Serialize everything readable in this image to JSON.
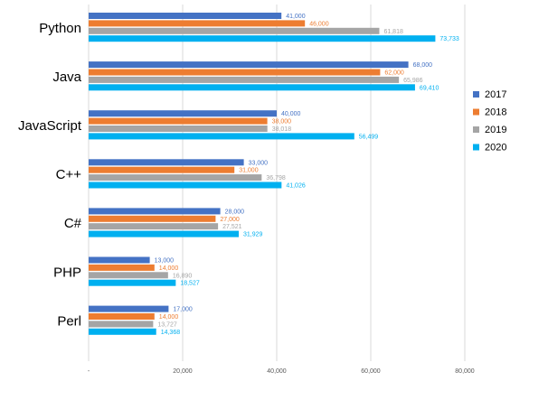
{
  "chart_data": {
    "type": "bar",
    "orientation": "horizontal",
    "categories": [
      "Python",
      "Java",
      "JavaScript",
      "C++",
      "C#",
      "PHP",
      "Perl"
    ],
    "series": [
      {
        "name": "2017",
        "color": "#4472C4",
        "values": [
          41000,
          68000,
          40000,
          33000,
          28000,
          13000,
          17000
        ],
        "labels": [
          "41,000",
          "68,000",
          "40,000",
          "33,000",
          "28,000",
          "13,000",
          "17,000"
        ]
      },
      {
        "name": "2018",
        "color": "#ED7D31",
        "values": [
          46000,
          62000,
          38000,
          31000,
          27000,
          14000,
          14000
        ],
        "labels": [
          "46,000",
          "62,000",
          "38,000",
          "31,000",
          "27,000",
          "14,000",
          "14,000"
        ]
      },
      {
        "name": "2019",
        "color": "#A5A5A5",
        "values": [
          61818,
          65986,
          38018,
          36798,
          27521,
          16890,
          13727
        ],
        "labels": [
          "61,818",
          "65,986",
          "38,018",
          "36,798",
          "27,521",
          "16,890",
          "13,727"
        ]
      },
      {
        "name": "2020",
        "color": "#00B0F0",
        "values": [
          73733,
          69410,
          56499,
          41026,
          31929,
          18527,
          14368
        ],
        "labels": [
          "73,733",
          "69,410",
          "56,499",
          "41,026",
          "31,929",
          "18,527",
          "14,368"
        ]
      }
    ],
    "x_ticks": [
      0,
      20000,
      40000,
      60000,
      80000
    ],
    "x_tick_labels": [
      "-",
      "20,000",
      "40,000",
      "60,000",
      "80,000"
    ],
    "xlim": [
      0,
      80000
    ],
    "grid": true,
    "legend_position": "right"
  }
}
